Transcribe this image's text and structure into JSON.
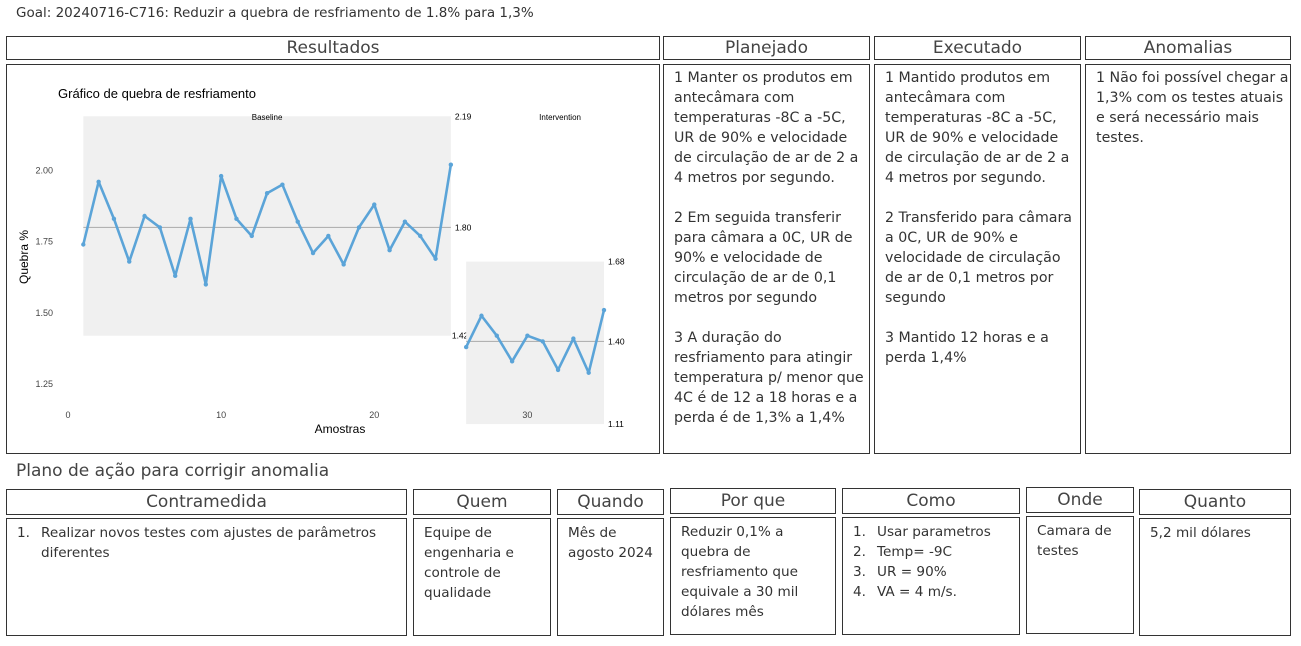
{
  "goal": "Goal: 20240716-C716: Reduzir a quebra de resfriamento de 1.8% para 1,3%",
  "top_headers": {
    "resultados": "Resultados",
    "planejado": "Planejado",
    "executado": "Executado",
    "anomalias": "Anomalias"
  },
  "planejado": [
    "1 Manter os produtos em antecâmara com temperaturas -8C a -5C, UR de 90% e velocidade de circulação de ar de 2 a 4 metros por segundo.",
    "2 Em seguida transferir para câmara a 0C, UR de 90% e velocidade de circulação de ar de 0,1 metros por segundo",
    "3 A duração do resfriamento para atingir temperatura p/ menor que 4C é de 12 a 18 horas e a perda é de 1,3% a 1,4%"
  ],
  "executado": [
    "1 Mantido produtos em antecâmara com temperaturas -8C a -5C, UR de 90% e velocidade de circulação de ar de 2 a 4 metros por segundo.",
    "2 Transferido para câmara a 0C, UR de 90% e velocidade de circulação de ar de 0,1 metros por segundo",
    "3 Mantido 12 horas e a perda 1,4%"
  ],
  "anomalias": [
    "1 Não foi possível chegar a 1,3% com os testes atuais e será necessário mais testes."
  ],
  "section_title": "Plano de ação para corrigir anomalia",
  "plan_headers": {
    "contramedida": "Contramedida",
    "quem": "Quem",
    "quando": "Quando",
    "porque": "Por que",
    "como": "Como",
    "onde": "Onde",
    "quanto": "Quanto"
  },
  "plan": {
    "contramedida_num": "1.",
    "contramedida": "Realizar novos testes com ajustes de parâmetros diferentes",
    "quem": "Equipe de engenharia e controle de qualidade",
    "quando": "Mês de agosto 2024",
    "porque": "Reduzir 0,1% a quebra de resfriamento que equivale a 30 mil dólares mês",
    "como": [
      {
        "n": "1.",
        "t": "Usar parametros"
      },
      {
        "n": "2.",
        "t": "Temp= -9C"
      },
      {
        "n": "3.",
        "t": "UR = 90%"
      },
      {
        "n": "4.",
        "t": "VA = 4 m/s."
      }
    ],
    "onde": "Camara de testes",
    "quanto": "5,2 mil dólares"
  },
  "chart_data": {
    "type": "line",
    "title": "Gráfico de quebra de resfriamento",
    "xlabel": "Amostras",
    "ylabel": "Quebra %",
    "xlim": [
      0,
      35
    ],
    "ylim": [
      1.04,
      2.24
    ],
    "xticks": [
      0,
      10,
      20,
      30
    ],
    "yticks": [
      1.25,
      1.5,
      1.75,
      2.0
    ],
    "ytick_labels": [
      "1.25",
      "1.50",
      "1.75",
      "2.00"
    ],
    "xtick_labels": [
      "0",
      "10",
      "20",
      "30"
    ],
    "grid": false,
    "phases": [
      {
        "name": "Baseline",
        "x": [
          1,
          2,
          3,
          4,
          5,
          6,
          7,
          8,
          9,
          10,
          11,
          12,
          13,
          14,
          15,
          16,
          17,
          18,
          19,
          20,
          21,
          22,
          23,
          24,
          25
        ],
        "y": [
          1.74,
          1.96,
          1.83,
          1.68,
          1.84,
          1.8,
          1.63,
          1.83,
          1.6,
          1.98,
          1.83,
          1.77,
          1.92,
          1.95,
          1.82,
          1.71,
          1.77,
          1.67,
          1.8,
          1.88,
          1.72,
          1.82,
          1.77,
          1.69,
          2.02
        ],
        "center": 1.8,
        "center_label": "1.80",
        "ucl": 2.19,
        "ucl_label": "2.19",
        "lcl": 1.42,
        "lcl_label": "1.42"
      },
      {
        "name": "Intervention",
        "x": [
          26,
          27,
          28,
          29,
          30,
          31,
          32,
          33,
          34,
          35
        ],
        "y": [
          1.38,
          1.49,
          1.42,
          1.33,
          1.42,
          1.4,
          1.3,
          1.41,
          1.29,
          1.51
        ],
        "center": 1.4,
        "center_label": "1.40",
        "ucl": 1.68,
        "ucl_label": "1.68",
        "lcl": 1.11,
        "lcl_label": "1.11"
      }
    ],
    "line_color": "#5ba4d8",
    "center_color": "#aaaaaa",
    "band_color": "#f0f0f0"
  }
}
